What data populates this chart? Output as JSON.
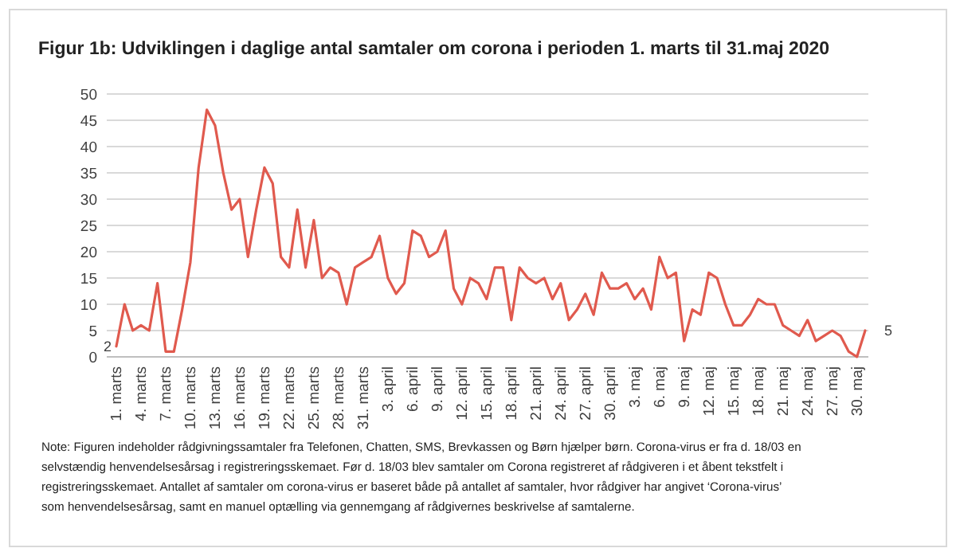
{
  "chart_data": {
    "type": "line",
    "title": "Figur 1b: Udviklingen i daglige antal samtaler om corona i perioden 1. marts til 31.maj 2020",
    "categories": [
      "1. marts",
      null,
      null,
      "4. marts",
      null,
      null,
      "7. marts",
      null,
      null,
      "10. marts",
      null,
      null,
      "13. marts",
      null,
      null,
      "16. marts",
      null,
      null,
      "19. marts",
      null,
      null,
      "22. marts",
      null,
      null,
      "25. marts",
      null,
      null,
      "28. marts",
      null,
      null,
      "31. marts",
      null,
      null,
      "3. april",
      null,
      null,
      "6. april",
      null,
      null,
      "9. april",
      null,
      null,
      "12. april",
      null,
      null,
      "15. april",
      null,
      null,
      "18. april",
      null,
      null,
      "21. april",
      null,
      null,
      "24. april",
      null,
      null,
      "27. april",
      null,
      null,
      "30. april",
      null,
      null,
      "3. maj",
      null,
      null,
      "6. maj",
      null,
      null,
      "9. maj",
      null,
      null,
      "12. maj",
      null,
      null,
      "15. maj",
      null,
      null,
      "18. maj",
      null,
      null,
      "21. maj",
      null,
      null,
      "24. maj",
      null,
      null,
      "27. maj",
      null,
      null,
      "30. maj",
      null
    ],
    "series": [
      {
        "color": "#e05a4e",
        "values": [
          2,
          10,
          5,
          6,
          5,
          14,
          1,
          1,
          9,
          18,
          36,
          47,
          44,
          35,
          28,
          30,
          19,
          28,
          36,
          33,
          19,
          17,
          28,
          17,
          26,
          15,
          17,
          16,
          10,
          17,
          18,
          19,
          23,
          15,
          12,
          14,
          24,
          23,
          19,
          20,
          24,
          13,
          10,
          15,
          14,
          11,
          17,
          17,
          7,
          17,
          15,
          14,
          15,
          11,
          14,
          7,
          9,
          12,
          8,
          16,
          13,
          13,
          14,
          11,
          13,
          9,
          19,
          15,
          16,
          3,
          9,
          8,
          16,
          15,
          10,
          6,
          6,
          8,
          11,
          10,
          10,
          6,
          5,
          4,
          7,
          3,
          4,
          5,
          4,
          1,
          0,
          5
        ],
        "value_labels": [
          "2",
          null,
          null,
          null,
          null,
          null,
          null,
          null,
          null,
          null,
          null,
          null,
          null,
          null,
          null,
          null,
          null,
          null,
          null,
          null,
          null,
          null,
          null,
          null,
          null,
          null,
          null,
          null,
          null,
          null,
          null,
          null,
          null,
          null,
          null,
          null,
          null,
          null,
          null,
          null,
          null,
          null,
          null,
          null,
          null,
          null,
          null,
          null,
          null,
          null,
          null,
          null,
          null,
          null,
          null,
          null,
          null,
          null,
          null,
          null,
          null,
          null,
          null,
          null,
          null,
          null,
          null,
          null,
          null,
          null,
          null,
          null,
          null,
          null,
          null,
          null,
          null,
          null,
          null,
          null,
          null,
          null,
          null,
          null,
          null,
          null,
          null,
          null,
          null,
          null,
          null,
          "5"
        ]
      }
    ],
    "ylim": [
      0,
      50
    ],
    "yticks": [
      0,
      5,
      10,
      15,
      20,
      25,
      30,
      35,
      40,
      45,
      50
    ],
    "grid": "y",
    "marker": "none",
    "annotations": [
      "Note: Figuren indeholder rådgivningssamtaler fra Telefonen, Chatten, SMS, Brevkassen og Børn hjælper børn. Corona-virus er fra d. 18/03 en selvstændig henvendelsesårsag i registreringsskemaet. Før d. 18/03 blev samtaler om Corona registreret af rådgiveren i et åbent tekstfelt i registreringsskemaet. Antallet af samtaler om corona-virus er baseret både på antallet af samtaler, hvor rådgiver har angivet ‘Corona-virus’ som henvendelsesårsag, samt en manuel optælling via gennemgang af rådgivernes beskrivelse af samtalerne."
    ]
  }
}
